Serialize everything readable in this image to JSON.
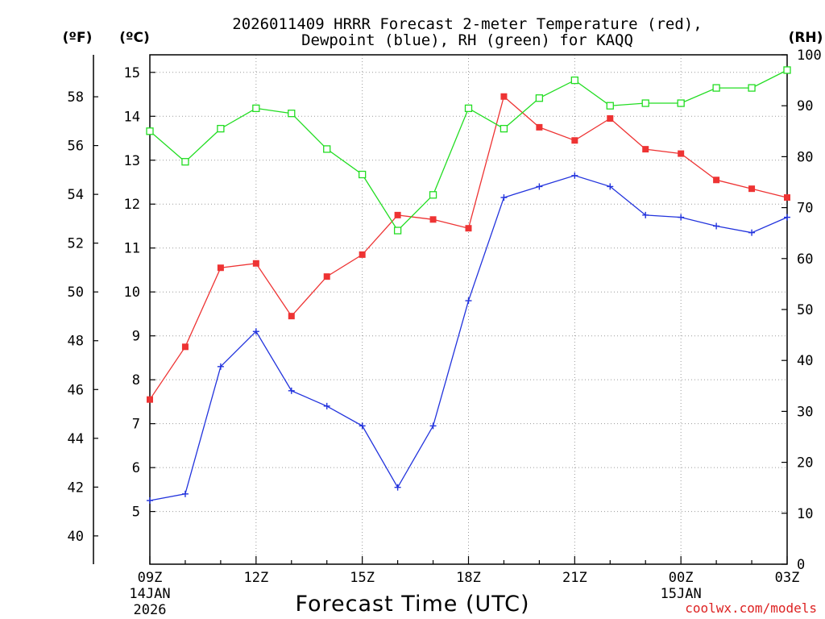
{
  "chart_data": {
    "type": "line",
    "title_line1": "2026011409 HRRR Forecast 2-meter Temperature (red),",
    "title_line2": "Dewpoint (blue), RH (green) for KAQQ",
    "xlabel": "Forecast Time (UTC)",
    "credit": "coolwx.com/models",
    "unit_f": "(ºF)",
    "unit_c": "(ºC)",
    "unit_rh": "(RH)",
    "x_ticks": [
      {
        "hour": 0,
        "label": "09Z",
        "sub1": "14JAN",
        "sub2": "2026"
      },
      {
        "hour": 3,
        "label": "12Z",
        "sub1": "",
        "sub2": ""
      },
      {
        "hour": 6,
        "label": "15Z",
        "sub1": "",
        "sub2": ""
      },
      {
        "hour": 9,
        "label": "18Z",
        "sub1": "",
        "sub2": ""
      },
      {
        "hour": 12,
        "label": "21Z",
        "sub1": "",
        "sub2": ""
      },
      {
        "hour": 15,
        "label": "00Z",
        "sub1": "15JAN",
        "sub2": ""
      },
      {
        "hour": 18,
        "label": "03Z",
        "sub1": "",
        "sub2": ""
      }
    ],
    "x_range_hours": [
      0,
      18
    ],
    "y_celsius": {
      "range": [
        3.8,
        15.4
      ],
      "ticks": [
        5,
        6,
        7,
        8,
        9,
        10,
        11,
        12,
        13,
        14,
        15
      ]
    },
    "y_fahrenheit": {
      "ticks": [
        40,
        42,
        44,
        46,
        48,
        50,
        52,
        54,
        56,
        58
      ]
    },
    "y_rh": {
      "range": [
        0,
        100
      ],
      "ticks": [
        0,
        10,
        20,
        30,
        40,
        50,
        60,
        70,
        80,
        90,
        100
      ]
    },
    "grid": true,
    "series": [
      {
        "name": "Temperature",
        "color": "#ee3333",
        "marker": "filled-square",
        "axis": "celsius",
        "values": [
          7.55,
          8.75,
          10.55,
          10.65,
          9.45,
          10.35,
          10.85,
          11.75,
          11.65,
          11.45,
          14.45,
          13.75,
          13.45,
          13.95,
          13.25,
          13.15,
          12.55,
          12.35,
          12.15
        ]
      },
      {
        "name": "Dewpoint",
        "color": "#2233dd",
        "marker": "plus",
        "axis": "celsius",
        "values": [
          5.25,
          5.4,
          8.3,
          9.1,
          7.75,
          7.4,
          6.95,
          5.55,
          6.95,
          9.8,
          12.15,
          12.4,
          12.65,
          12.4,
          11.75,
          11.7,
          11.5,
          11.35,
          11.7
        ]
      },
      {
        "name": "RH",
        "color": "#22dd22",
        "marker": "open-square",
        "axis": "rh",
        "values": [
          85,
          79,
          85.5,
          89.5,
          88.5,
          81.5,
          76.5,
          65.5,
          72.5,
          89.5,
          85.5,
          91.5,
          95,
          90,
          90.5,
          90.5,
          93.5,
          93.5,
          97
        ]
      }
    ]
  }
}
